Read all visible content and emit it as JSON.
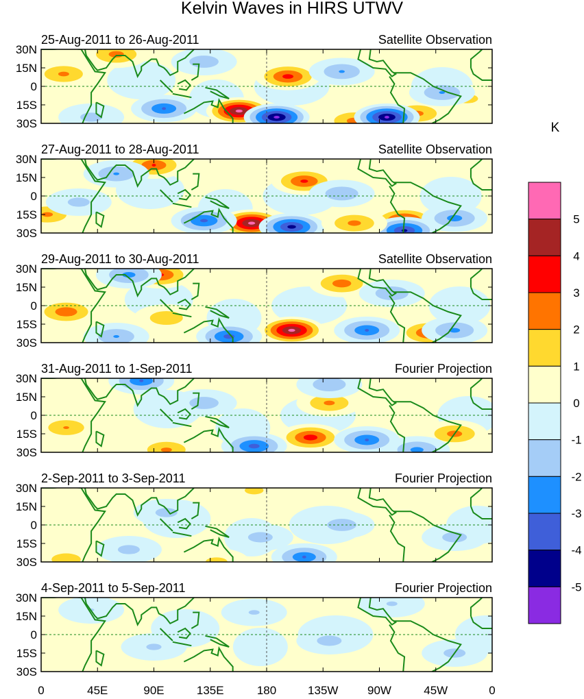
{
  "chart_data": {
    "type": "heatmap",
    "title": "Kelvin Waves in HIRS UTWV",
    "units": "K",
    "lat_ticks": [
      "30N",
      "15N",
      "0",
      "15S",
      "30S"
    ],
    "lon_ticks": [
      "0",
      "45E",
      "90E",
      "135E",
      "180",
      "135W",
      "90W",
      "45W",
      "0"
    ],
    "lat_range": [
      -30,
      30
    ],
    "lon_range": [
      0,
      360
    ],
    "colorbar": {
      "labels": [
        "5",
        "4",
        "3",
        "2",
        "1",
        "0",
        "-1",
        "-2",
        "-3",
        "-4",
        "-5"
      ],
      "levels": [
        -5,
        -4,
        -3,
        -2,
        -1,
        0,
        1,
        2,
        3,
        4,
        5
      ],
      "colors": [
        "#8a2be2",
        "#00008b",
        "#3f5fd9",
        "#1e90ff",
        "#a5cdf7",
        "#d4f4fc",
        "#ffffcc",
        "#ffd92f",
        "#ff7400",
        "#ff0000",
        "#a52424",
        "#ff69b4"
      ]
    },
    "panels": [
      {
        "date": "25-Aug-2011 to 26-Aug-2011",
        "source": "Satellite Observation",
        "features": [
          [
            197,
            8,
            3.6
          ],
          [
            158,
            -20,
            5.6
          ],
          [
            60,
            26,
            2.6
          ],
          [
            18,
            10,
            2.4
          ],
          [
            300,
            -22,
            2.5
          ],
          [
            250,
            -28,
            2.6
          ],
          [
            340,
            -10,
            1.5
          ],
          [
            188,
            -25,
            -5.5
          ],
          [
            276,
            -25,
            -5.4
          ],
          [
            98,
            -18,
            -3.2
          ],
          [
            240,
            12,
            -2.2
          ],
          [
            320,
            -5,
            -2.2
          ],
          [
            130,
            20,
            -1.8
          ],
          [
            40,
            -25,
            -1.5
          ]
        ]
      },
      {
        "date": "27-Aug-2011 to 28-Aug-2011",
        "source": "Satellite Observation",
        "features": [
          [
            210,
            12,
            3.4
          ],
          [
            168,
            -22,
            5.6
          ],
          [
            90,
            25,
            3.2
          ],
          [
            290,
            -20,
            4.2
          ],
          [
            5,
            -15,
            2.4
          ],
          [
            200,
            -25,
            -4.6
          ],
          [
            130,
            -20,
            -3.4
          ],
          [
            60,
            18,
            -2.2
          ],
          [
            240,
            2,
            -2
          ],
          [
            330,
            -18,
            -2.6
          ],
          [
            290,
            -28,
            -4.4
          ],
          [
            250,
            -22,
            2.5
          ],
          [
            30,
            -5,
            -1.5
          ]
        ]
      },
      {
        "date": "29-Aug-2011 to 30-Aug-2011",
        "source": "Satellite Observation",
        "features": [
          [
            200,
            -20,
            5.6
          ],
          [
            95,
            25,
            3.4
          ],
          [
            240,
            18,
            2.8
          ],
          [
            310,
            -22,
            3.4
          ],
          [
            20,
            -5,
            3
          ],
          [
            150,
            -25,
            -3.6
          ],
          [
            260,
            -20,
            -3.2
          ],
          [
            60,
            -25,
            -2.2
          ],
          [
            70,
            25,
            -2.5
          ],
          [
            330,
            -20,
            -2.4
          ],
          [
            280,
            10,
            -2
          ],
          [
            100,
            -10,
            2
          ]
        ]
      },
      {
        "date": "31-Aug-2011 to 1-Sep-2011",
        "source": "Fourier Projection",
        "features": [
          [
            215,
            -18,
            3.8
          ],
          [
            230,
            10,
            2.4
          ],
          [
            330,
            -15,
            2.6
          ],
          [
            100,
            -28,
            2.4
          ],
          [
            170,
            -25,
            -3.6
          ],
          [
            260,
            -20,
            -3.2
          ],
          [
            80,
            28,
            -3.1
          ],
          [
            300,
            -28,
            -2.5
          ],
          [
            20,
            -10,
            2.2
          ],
          [
            130,
            10,
            -1.8
          ],
          [
            230,
            25,
            -2
          ]
        ]
      },
      {
        "date": "2-Sep-2011 to 3-Sep-2011",
        "source": "Fourier Projection",
        "features": [
          [
            210,
            -26,
            -3.1
          ],
          [
            240,
            0,
            -1.8
          ],
          [
            330,
            -10,
            -1.6
          ],
          [
            100,
            10,
            -1.5
          ],
          [
            20,
            -28,
            1.8
          ],
          [
            175,
            -10,
            -1.6
          ],
          [
            70,
            -20,
            -1.5
          ],
          [
            140,
            -30,
            1.5
          ],
          [
            170,
            28,
            1.4
          ]
        ]
      },
      {
        "date": "4-Sep-2011 to 5-Sep-2011",
        "source": "Fourier Projection",
        "features": [
          [
            230,
            -5,
            -1.6
          ],
          [
            330,
            -15,
            -1.5
          ],
          [
            90,
            -10,
            -1.3
          ],
          [
            170,
            18,
            -1.2
          ],
          [
            280,
            25,
            -1.2
          ],
          [
            40,
            20,
            -1.1
          ]
        ]
      }
    ]
  }
}
